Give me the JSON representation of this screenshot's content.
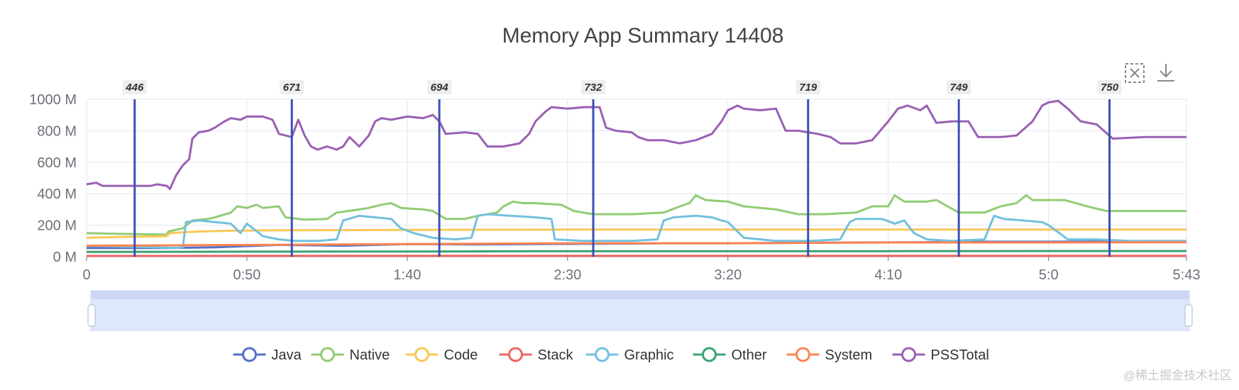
{
  "chart_data": {
    "type": "line",
    "title": "Memory App Summary 14408",
    "xlabel": "",
    "ylabel": "",
    "x_ticks": [
      "0",
      "0:50",
      "1:40",
      "2:30",
      "3:20",
      "4:10",
      "5:0",
      "5:43"
    ],
    "x_tick_seconds": [
      0,
      50,
      100,
      150,
      200,
      250,
      300,
      343
    ],
    "xlim": [
      0,
      343
    ],
    "y_ticks": [
      "0 M",
      "200 M",
      "400 M",
      "600 M",
      "800 M",
      "1000 M"
    ],
    "ylim": [
      0,
      1000
    ],
    "grid": true,
    "legend_position": "bottom",
    "markers": [
      {
        "t": 15,
        "label": "446"
      },
      {
        "t": 64,
        "label": "671"
      },
      {
        "t": 110,
        "label": "694"
      },
      {
        "t": 158,
        "label": "732"
      },
      {
        "t": 225,
        "label": "719"
      },
      {
        "t": 272,
        "label": "749"
      },
      {
        "t": 319,
        "label": "750"
      }
    ],
    "series": [
      {
        "name": "Java",
        "color": "#5470c6",
        "points": [
          [
            0,
            55
          ],
          [
            25,
            55
          ],
          [
            40,
            60
          ],
          [
            60,
            75
          ],
          [
            80,
            70
          ],
          [
            100,
            80
          ],
          [
            120,
            78
          ],
          [
            140,
            80
          ],
          [
            160,
            82
          ],
          [
            180,
            85
          ],
          [
            200,
            85
          ],
          [
            220,
            88
          ],
          [
            240,
            90
          ],
          [
            260,
            92
          ],
          [
            280,
            95
          ],
          [
            300,
            95
          ],
          [
            320,
            97
          ],
          [
            343,
            98
          ]
        ]
      },
      {
        "name": "Native",
        "color": "#91cc75",
        "points": [
          [
            0,
            150
          ],
          [
            10,
            145
          ],
          [
            25,
            140
          ],
          [
            25.5,
            160
          ],
          [
            30,
            180
          ],
          [
            33,
            230
          ],
          [
            38,
            240
          ],
          [
            40,
            250
          ],
          [
            45,
            280
          ],
          [
            47,
            320
          ],
          [
            50,
            310
          ],
          [
            53,
            330
          ],
          [
            55,
            310
          ],
          [
            60,
            320
          ],
          [
            62,
            250
          ],
          [
            68,
            235
          ],
          [
            75,
            240
          ],
          [
            78,
            280
          ],
          [
            85,
            300
          ],
          [
            88,
            310
          ],
          [
            92,
            330
          ],
          [
            95,
            340
          ],
          [
            98,
            310
          ],
          [
            105,
            300
          ],
          [
            108,
            290
          ],
          [
            112,
            240
          ],
          [
            118,
            240
          ],
          [
            122,
            260
          ],
          [
            128,
            280
          ],
          [
            130,
            320
          ],
          [
            133,
            350
          ],
          [
            136,
            340
          ],
          [
            140,
            340
          ],
          [
            148,
            330
          ],
          [
            152,
            290
          ],
          [
            158,
            270
          ],
          [
            170,
            270
          ],
          [
            180,
            280
          ],
          [
            185,
            320
          ],
          [
            188,
            340
          ],
          [
            190,
            390
          ],
          [
            193,
            360
          ],
          [
            200,
            350
          ],
          [
            205,
            320
          ],
          [
            215,
            300
          ],
          [
            222,
            270
          ],
          [
            230,
            270
          ],
          [
            240,
            280
          ],
          [
            245,
            320
          ],
          [
            250,
            320
          ],
          [
            252,
            390
          ],
          [
            255,
            350
          ],
          [
            262,
            350
          ],
          [
            265,
            360
          ],
          [
            272,
            280
          ],
          [
            280,
            280
          ],
          [
            285,
            320
          ],
          [
            290,
            340
          ],
          [
            293,
            390
          ],
          [
            295,
            360
          ],
          [
            305,
            360
          ],
          [
            312,
            320
          ],
          [
            318,
            290
          ],
          [
            330,
            290
          ],
          [
            343,
            290
          ]
        ]
      },
      {
        "name": "Code",
        "color": "#fac858",
        "points": [
          [
            0,
            120
          ],
          [
            10,
            125
          ],
          [
            25,
            130
          ],
          [
            26,
            150
          ],
          [
            35,
            160
          ],
          [
            45,
            165
          ],
          [
            60,
            168
          ],
          [
            100,
            170
          ],
          [
            150,
            172
          ],
          [
            200,
            172
          ],
          [
            250,
            172
          ],
          [
            300,
            172
          ],
          [
            343,
            172
          ]
        ]
      },
      {
        "name": "Stack",
        "color": "#ee6666",
        "points": [
          [
            0,
            5
          ],
          [
            100,
            6
          ],
          [
            200,
            6
          ],
          [
            343,
            6
          ]
        ]
      },
      {
        "name": "Graphic",
        "color": "#73c0de",
        "points": [
          [
            0,
            70
          ],
          [
            20,
            60
          ],
          [
            28,
            55
          ],
          [
            30,
            60
          ],
          [
            31,
            220
          ],
          [
            35,
            230
          ],
          [
            40,
            220
          ],
          [
            45,
            210
          ],
          [
            48,
            150
          ],
          [
            50,
            210
          ],
          [
            55,
            130
          ],
          [
            60,
            110
          ],
          [
            65,
            100
          ],
          [
            72,
            100
          ],
          [
            78,
            110
          ],
          [
            80,
            230
          ],
          [
            85,
            260
          ],
          [
            90,
            250
          ],
          [
            95,
            240
          ],
          [
            98,
            180
          ],
          [
            102,
            150
          ],
          [
            108,
            120
          ],
          [
            115,
            110
          ],
          [
            120,
            120
          ],
          [
            122,
            260
          ],
          [
            125,
            270
          ],
          [
            132,
            260
          ],
          [
            140,
            250
          ],
          [
            145,
            240
          ],
          [
            146,
            110
          ],
          [
            155,
            100
          ],
          [
            170,
            100
          ],
          [
            178,
            110
          ],
          [
            180,
            230
          ],
          [
            183,
            250
          ],
          [
            190,
            260
          ],
          [
            195,
            250
          ],
          [
            198,
            230
          ],
          [
            200,
            220
          ],
          [
            205,
            120
          ],
          [
            215,
            100
          ],
          [
            225,
            100
          ],
          [
            235,
            110
          ],
          [
            238,
            220
          ],
          [
            240,
            240
          ],
          [
            248,
            240
          ],
          [
            252,
            210
          ],
          [
            255,
            230
          ],
          [
            258,
            150
          ],
          [
            262,
            110
          ],
          [
            270,
            100
          ],
          [
            280,
            110
          ],
          [
            283,
            260
          ],
          [
            286,
            240
          ],
          [
            292,
            230
          ],
          [
            298,
            220
          ],
          [
            300,
            200
          ],
          [
            306,
            110
          ],
          [
            315,
            110
          ],
          [
            325,
            100
          ],
          [
            343,
            100
          ]
        ]
      },
      {
        "name": "Other",
        "color": "#3ba272",
        "points": [
          [
            0,
            30
          ],
          [
            50,
            32
          ],
          [
            100,
            33
          ],
          [
            150,
            35
          ],
          [
            200,
            35
          ],
          [
            250,
            35
          ],
          [
            300,
            36
          ],
          [
            343,
            36
          ]
        ]
      },
      {
        "name": "System",
        "color": "#fc8452",
        "points": [
          [
            0,
            70
          ],
          [
            50,
            75
          ],
          [
            100,
            80
          ],
          [
            150,
            85
          ],
          [
            200,
            85
          ],
          [
            250,
            90
          ],
          [
            300,
            90
          ],
          [
            343,
            92
          ]
        ]
      },
      {
        "name": "PSSTotal",
        "color": "#9a60b4",
        "points": [
          [
            0,
            460
          ],
          [
            3,
            470
          ],
          [
            5,
            450
          ],
          [
            10,
            450
          ],
          [
            20,
            450
          ],
          [
            22,
            460
          ],
          [
            25,
            450
          ],
          [
            26,
            430
          ],
          [
            28,
            520
          ],
          [
            30,
            580
          ],
          [
            32,
            620
          ],
          [
            33,
            750
          ],
          [
            35,
            790
          ],
          [
            38,
            800
          ],
          [
            40,
            820
          ],
          [
            43,
            860
          ],
          [
            45,
            880
          ],
          [
            48,
            870
          ],
          [
            50,
            890
          ],
          [
            55,
            890
          ],
          [
            58,
            870
          ],
          [
            60,
            780
          ],
          [
            62,
            770
          ],
          [
            64,
            760
          ],
          [
            66,
            870
          ],
          [
            68,
            770
          ],
          [
            70,
            700
          ],
          [
            72,
            680
          ],
          [
            75,
            700
          ],
          [
            78,
            680
          ],
          [
            80,
            700
          ],
          [
            82,
            760
          ],
          [
            85,
            700
          ],
          [
            88,
            770
          ],
          [
            90,
            860
          ],
          [
            92,
            880
          ],
          [
            95,
            870
          ],
          [
            100,
            890
          ],
          [
            105,
            880
          ],
          [
            108,
            900
          ],
          [
            110,
            860
          ],
          [
            112,
            780
          ],
          [
            118,
            790
          ],
          [
            122,
            780
          ],
          [
            125,
            700
          ],
          [
            130,
            700
          ],
          [
            135,
            720
          ],
          [
            138,
            780
          ],
          [
            140,
            860
          ],
          [
            143,
            920
          ],
          [
            145,
            950
          ],
          [
            150,
            940
          ],
          [
            155,
            950
          ],
          [
            160,
            950
          ],
          [
            162,
            820
          ],
          [
            165,
            800
          ],
          [
            170,
            790
          ],
          [
            172,
            760
          ],
          [
            175,
            740
          ],
          [
            180,
            740
          ],
          [
            185,
            720
          ],
          [
            190,
            740
          ],
          [
            195,
            780
          ],
          [
            198,
            860
          ],
          [
            200,
            930
          ],
          [
            203,
            960
          ],
          [
            205,
            940
          ],
          [
            210,
            930
          ],
          [
            215,
            940
          ],
          [
            218,
            800
          ],
          [
            222,
            800
          ],
          [
            228,
            780
          ],
          [
            232,
            760
          ],
          [
            235,
            720
          ],
          [
            240,
            720
          ],
          [
            245,
            740
          ],
          [
            250,
            860
          ],
          [
            253,
            940
          ],
          [
            256,
            960
          ],
          [
            260,
            930
          ],
          [
            262,
            960
          ],
          [
            265,
            850
          ],
          [
            270,
            860
          ],
          [
            275,
            860
          ],
          [
            278,
            760
          ],
          [
            285,
            760
          ],
          [
            290,
            770
          ],
          [
            295,
            860
          ],
          [
            298,
            960
          ],
          [
            300,
            980
          ],
          [
            303,
            990
          ],
          [
            306,
            940
          ],
          [
            308,
            900
          ],
          [
            310,
            860
          ],
          [
            315,
            840
          ],
          [
            320,
            750
          ],
          [
            330,
            760
          ],
          [
            340,
            760
          ],
          [
            343,
            760
          ]
        ]
      }
    ]
  },
  "toolbox": {
    "restore_icon": "zoom-reset-icon",
    "download_icon": "download-icon"
  },
  "watermark": "@稀土掘金技术社区"
}
